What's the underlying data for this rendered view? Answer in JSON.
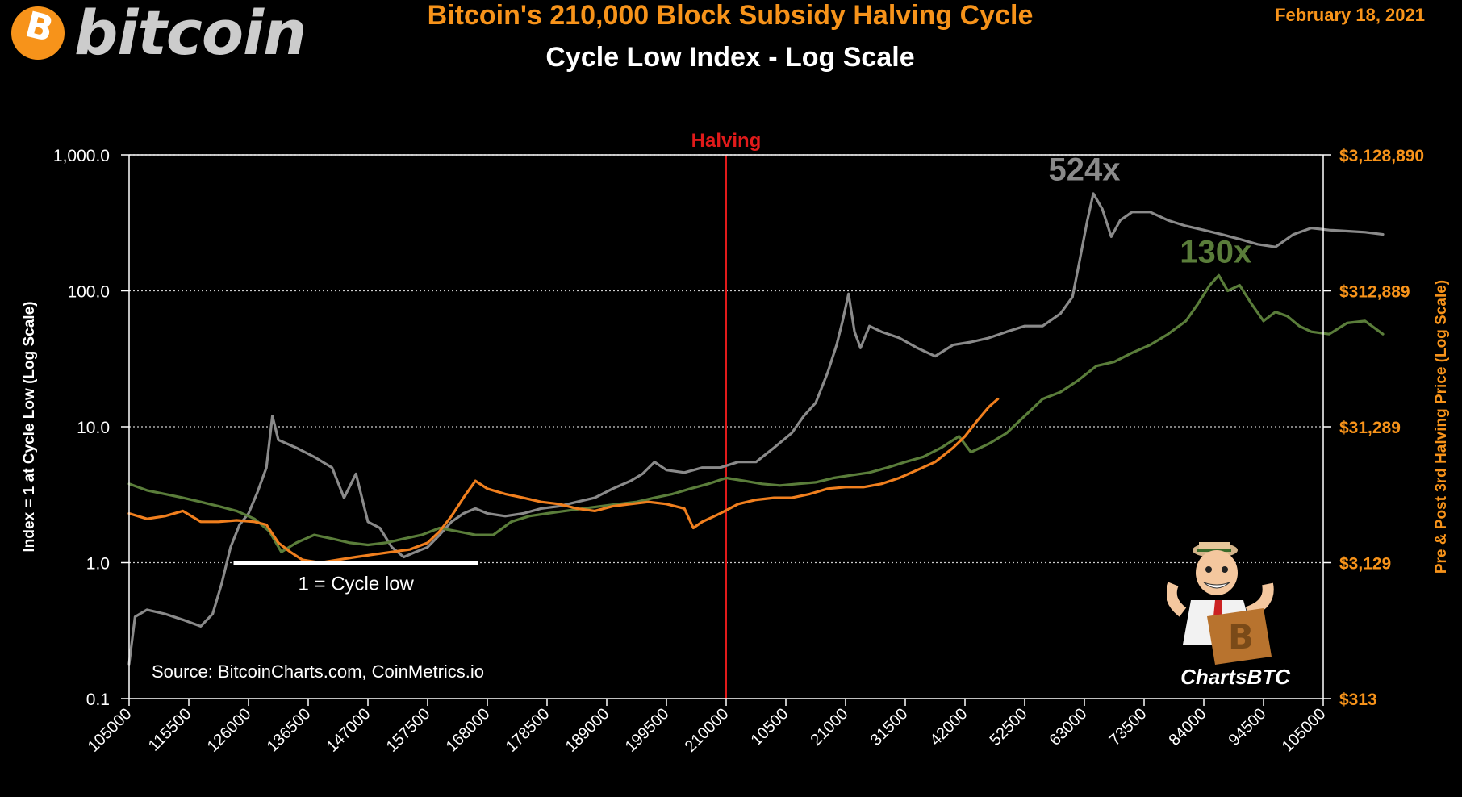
{
  "header": {
    "logo_text": "bitcoin",
    "logo_symbol": "B",
    "title": "Bitcoin's 210,000 Block Subsidy Halving Cycle",
    "subtitle": "Cycle Low Index - Log Scale",
    "date": "February 18, 2021"
  },
  "colors": {
    "title": "#f7931a",
    "gray_series": "#8a8a8a",
    "green_series": "#5a7d3a",
    "orange_series": "#f07f1e",
    "halving_line": "#e01a1a",
    "gridline": "#cccccc"
  },
  "chart_data": {
    "type": "line",
    "y_scale": "log",
    "grid": "horizontal dotted",
    "xlabel": "",
    "ylabel": "Index = 1 at Cycle Low (Log Scale)",
    "y2label": "Pre & Post 3rd Halving Price (Log Scale)",
    "ylim": [
      0.1,
      1000
    ],
    "y_ticks": [
      "1,000.0",
      "100.0",
      "10.0",
      "1.0",
      "0.1"
    ],
    "y2_ticks": [
      "$3,128,890",
      "$312,889",
      "$31,289",
      "$3,129",
      "$313"
    ],
    "x_ticks": [
      "105000",
      "115500",
      "126000",
      "136500",
      "147000",
      "157500",
      "168000",
      "178500",
      "189000",
      "199500",
      "210000",
      "10500",
      "21000",
      "31500",
      "42000",
      "52500",
      "63000",
      "73500",
      "84000",
      "94500",
      "105000"
    ],
    "halving_line": {
      "x_index": 10,
      "label": "Halving"
    },
    "annotations": [
      {
        "text": "524x",
        "x_index": 16,
        "y": 524,
        "color": "#8a8a8a"
      },
      {
        "text": "130x",
        "x_index": 18.2,
        "y": 130,
        "color": "#5a7d3a"
      },
      {
        "text": "1 = Cycle low",
        "x_index": 3.8,
        "y": 0.7,
        "color": "#ffffff"
      }
    ],
    "cycle_low_marker": {
      "x_start_index": 1.75,
      "x_end_index": 5.85,
      "y": 1.0
    },
    "source": "Source: BitcoinCharts.com, CoinMetrics.io",
    "series": [
      {
        "color": "#8a8a8a",
        "points": [
          [
            0,
            0.18
          ],
          [
            0.1,
            0.4
          ],
          [
            0.3,
            0.45
          ],
          [
            0.6,
            0.42
          ],
          [
            0.9,
            0.38
          ],
          [
            1.2,
            0.34
          ],
          [
            1.4,
            0.42
          ],
          [
            1.55,
            0.7
          ],
          [
            1.7,
            1.3
          ],
          [
            1.85,
            1.9
          ],
          [
            2.0,
            2.3
          ],
          [
            2.15,
            3.3
          ],
          [
            2.3,
            5.0
          ],
          [
            2.4,
            12.0
          ],
          [
            2.5,
            8.0
          ],
          [
            2.8,
            7.0
          ],
          [
            3.1,
            6.0
          ],
          [
            3.4,
            5.0
          ],
          [
            3.6,
            3.0
          ],
          [
            3.8,
            4.5
          ],
          [
            4.0,
            2.0
          ],
          [
            4.2,
            1.8
          ],
          [
            4.4,
            1.3
          ],
          [
            4.6,
            1.1
          ],
          [
            4.8,
            1.2
          ],
          [
            5.0,
            1.3
          ],
          [
            5.2,
            1.6
          ],
          [
            5.4,
            2.0
          ],
          [
            5.6,
            2.3
          ],
          [
            5.8,
            2.5
          ],
          [
            6.0,
            2.3
          ],
          [
            6.3,
            2.2
          ],
          [
            6.6,
            2.3
          ],
          [
            6.9,
            2.5
          ],
          [
            7.2,
            2.6
          ],
          [
            7.5,
            2.8
          ],
          [
            7.8,
            3.0
          ],
          [
            8.1,
            3.5
          ],
          [
            8.4,
            4.0
          ],
          [
            8.6,
            4.5
          ],
          [
            8.8,
            5.5
          ],
          [
            9.0,
            4.8
          ],
          [
            9.3,
            4.6
          ],
          [
            9.6,
            5.0
          ],
          [
            9.9,
            5.0
          ],
          [
            10.2,
            5.5
          ],
          [
            10.5,
            5.5
          ],
          [
            10.8,
            7.0
          ],
          [
            11.1,
            9.0
          ],
          [
            11.3,
            12.0
          ],
          [
            11.5,
            15.0
          ],
          [
            11.7,
            25.0
          ],
          [
            11.85,
            40.0
          ],
          [
            11.95,
            60.0
          ],
          [
            12.05,
            95.0
          ],
          [
            12.15,
            50.0
          ],
          [
            12.25,
            38.0
          ],
          [
            12.4,
            55.0
          ],
          [
            12.6,
            50.0
          ],
          [
            12.9,
            45.0
          ],
          [
            13.2,
            38.0
          ],
          [
            13.5,
            33.0
          ],
          [
            13.8,
            40.0
          ],
          [
            14.1,
            42.0
          ],
          [
            14.4,
            45.0
          ],
          [
            14.7,
            50.0
          ],
          [
            15.0,
            55.0
          ],
          [
            15.3,
            55.0
          ],
          [
            15.6,
            68.0
          ],
          [
            15.8,
            90.0
          ],
          [
            15.9,
            150.0
          ],
          [
            16.05,
            330.0
          ],
          [
            16.15,
            520.0
          ],
          [
            16.3,
            400.0
          ],
          [
            16.45,
            250.0
          ],
          [
            16.6,
            330.0
          ],
          [
            16.8,
            380.0
          ],
          [
            17.1,
            380.0
          ],
          [
            17.4,
            330.0
          ],
          [
            17.7,
            300.0
          ],
          [
            18.0,
            280.0
          ],
          [
            18.3,
            260.0
          ],
          [
            18.6,
            240.0
          ],
          [
            18.9,
            220.0
          ],
          [
            19.2,
            210.0
          ],
          [
            19.5,
            260.0
          ],
          [
            19.8,
            290.0
          ],
          [
            20.1,
            280.0
          ],
          [
            20.4,
            275.0
          ],
          [
            20.7,
            270.0
          ],
          [
            21.0,
            260.0
          ]
        ]
      },
      {
        "color": "#5a7d3a",
        "points": [
          [
            0,
            3.8
          ],
          [
            0.3,
            3.4
          ],
          [
            0.6,
            3.2
          ],
          [
            0.9,
            3.0
          ],
          [
            1.2,
            2.8
          ],
          [
            1.5,
            2.6
          ],
          [
            1.8,
            2.4
          ],
          [
            2.1,
            2.1
          ],
          [
            2.35,
            1.7
          ],
          [
            2.55,
            1.2
          ],
          [
            2.8,
            1.4
          ],
          [
            3.1,
            1.6
          ],
          [
            3.4,
            1.5
          ],
          [
            3.7,
            1.4
          ],
          [
            4.0,
            1.35
          ],
          [
            4.3,
            1.4
          ],
          [
            4.6,
            1.5
          ],
          [
            4.9,
            1.6
          ],
          [
            5.2,
            1.8
          ],
          [
            5.5,
            1.7
          ],
          [
            5.8,
            1.6
          ],
          [
            6.1,
            1.6
          ],
          [
            6.4,
            2.0
          ],
          [
            6.7,
            2.2
          ],
          [
            7.0,
            2.3
          ],
          [
            7.3,
            2.4
          ],
          [
            7.6,
            2.5
          ],
          [
            7.9,
            2.6
          ],
          [
            8.2,
            2.7
          ],
          [
            8.5,
            2.8
          ],
          [
            8.8,
            3.0
          ],
          [
            9.1,
            3.2
          ],
          [
            9.4,
            3.5
          ],
          [
            9.7,
            3.8
          ],
          [
            10.0,
            4.2
          ],
          [
            10.3,
            4.0
          ],
          [
            10.6,
            3.8
          ],
          [
            10.9,
            3.7
          ],
          [
            11.2,
            3.8
          ],
          [
            11.5,
            3.9
          ],
          [
            11.8,
            4.2
          ],
          [
            12.1,
            4.4
          ],
          [
            12.4,
            4.6
          ],
          [
            12.7,
            5.0
          ],
          [
            13.0,
            5.5
          ],
          [
            13.3,
            6.0
          ],
          [
            13.6,
            7.0
          ],
          [
            13.9,
            8.5
          ],
          [
            14.1,
            6.5
          ],
          [
            14.4,
            7.5
          ],
          [
            14.7,
            9.0
          ],
          [
            15.0,
            12.0
          ],
          [
            15.3,
            16.0
          ],
          [
            15.6,
            18.0
          ],
          [
            15.9,
            22.0
          ],
          [
            16.2,
            28.0
          ],
          [
            16.5,
            30.0
          ],
          [
            16.8,
            35.0
          ],
          [
            17.1,
            40.0
          ],
          [
            17.4,
            48.0
          ],
          [
            17.7,
            60.0
          ],
          [
            17.9,
            80.0
          ],
          [
            18.1,
            110.0
          ],
          [
            18.25,
            130.0
          ],
          [
            18.4,
            100.0
          ],
          [
            18.6,
            110.0
          ],
          [
            18.8,
            80.0
          ],
          [
            19.0,
            60.0
          ],
          [
            19.2,
            70.0
          ],
          [
            19.4,
            65.0
          ],
          [
            19.6,
            55.0
          ],
          [
            19.8,
            50.0
          ],
          [
            20.1,
            48.0
          ],
          [
            20.4,
            58.0
          ],
          [
            20.7,
            60.0
          ],
          [
            21.0,
            48.0
          ]
        ]
      },
      {
        "color": "#f07f1e",
        "points": [
          [
            0,
            2.3
          ],
          [
            0.3,
            2.1
          ],
          [
            0.6,
            2.2
          ],
          [
            0.9,
            2.4
          ],
          [
            1.2,
            2.0
          ],
          [
            1.5,
            2.0
          ],
          [
            1.8,
            2.05
          ],
          [
            2.1,
            2.0
          ],
          [
            2.3,
            1.9
          ],
          [
            2.5,
            1.4
          ],
          [
            2.7,
            1.2
          ],
          [
            2.9,
            1.05
          ],
          [
            3.2,
            1.0
          ],
          [
            3.5,
            1.05
          ],
          [
            3.8,
            1.1
          ],
          [
            4.1,
            1.15
          ],
          [
            4.4,
            1.2
          ],
          [
            4.7,
            1.25
          ],
          [
            5.0,
            1.4
          ],
          [
            5.2,
            1.7
          ],
          [
            5.4,
            2.2
          ],
          [
            5.6,
            3.0
          ],
          [
            5.8,
            4.0
          ],
          [
            6.0,
            3.5
          ],
          [
            6.3,
            3.2
          ],
          [
            6.6,
            3.0
          ],
          [
            6.9,
            2.8
          ],
          [
            7.2,
            2.7
          ],
          [
            7.5,
            2.5
          ],
          [
            7.8,
            2.4
          ],
          [
            8.1,
            2.6
          ],
          [
            8.4,
            2.7
          ],
          [
            8.7,
            2.8
          ],
          [
            9.0,
            2.7
          ],
          [
            9.3,
            2.5
          ],
          [
            9.45,
            1.8
          ],
          [
            9.6,
            2.0
          ],
          [
            9.9,
            2.3
          ],
          [
            10.2,
            2.7
          ],
          [
            10.5,
            2.9
          ],
          [
            10.8,
            3.0
          ],
          [
            11.1,
            3.0
          ],
          [
            11.4,
            3.2
          ],
          [
            11.7,
            3.5
          ],
          [
            12.0,
            3.6
          ],
          [
            12.3,
            3.6
          ],
          [
            12.6,
            3.8
          ],
          [
            12.9,
            4.2
          ],
          [
            13.2,
            4.8
          ],
          [
            13.5,
            5.5
          ],
          [
            13.8,
            7.0
          ],
          [
            14.0,
            8.5
          ],
          [
            14.2,
            11.0
          ],
          [
            14.4,
            14.0
          ],
          [
            14.55,
            16.0
          ]
        ]
      }
    ]
  }
}
